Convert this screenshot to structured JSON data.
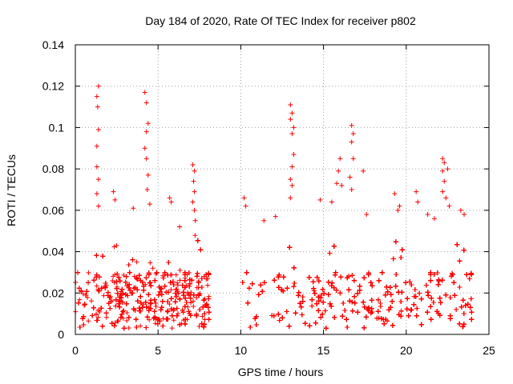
{
  "chart_data": {
    "type": "scatter",
    "title": "Day 184 of 2020, Rate Of TEC Index for receiver p802",
    "xlabel": "GPS time / hours",
    "ylabel": "ROTI / TECUs",
    "xlim": [
      0,
      25
    ],
    "ylim": [
      0,
      0.14
    ],
    "x_ticks": [
      0,
      5,
      10,
      15,
      20,
      25
    ],
    "x_tick_labels": [
      "0",
      "5",
      "10",
      "15",
      "20",
      "25"
    ],
    "y_ticks": [
      0,
      0.02,
      0.04,
      0.06,
      0.08,
      0.1,
      0.12,
      0.14
    ],
    "y_tick_labels": [
      "0",
      "0.02",
      "0.04",
      "0.06",
      "0.08",
      "0.1",
      "0.12",
      "0.14"
    ],
    "grid": true,
    "marker": "plus",
    "series": [
      {
        "name": "ROTI",
        "color": "#ff0000",
        "coverage_hours": [
          [
            0,
            8.1
          ],
          [
            10.1,
            24.0
          ]
        ],
        "baseline_range": [
          0.003,
          0.03
        ],
        "peaks": [
          {
            "x": 1.4,
            "y": 0.12
          },
          {
            "x": 1.3,
            "y": 0.115
          },
          {
            "x": 1.35,
            "y": 0.11
          },
          {
            "x": 1.4,
            "y": 0.099
          },
          {
            "x": 1.3,
            "y": 0.091
          },
          {
            "x": 1.3,
            "y": 0.081
          },
          {
            "x": 1.4,
            "y": 0.075
          },
          {
            "x": 1.3,
            "y": 0.068
          },
          {
            "x": 1.4,
            "y": 0.062
          },
          {
            "x": 2.3,
            "y": 0.069
          },
          {
            "x": 2.4,
            "y": 0.065
          },
          {
            "x": 3.5,
            "y": 0.061
          },
          {
            "x": 4.2,
            "y": 0.117
          },
          {
            "x": 4.3,
            "y": 0.112
          },
          {
            "x": 4.4,
            "y": 0.102
          },
          {
            "x": 4.3,
            "y": 0.098
          },
          {
            "x": 4.2,
            "y": 0.09
          },
          {
            "x": 4.3,
            "y": 0.085
          },
          {
            "x": 4.4,
            "y": 0.077
          },
          {
            "x": 4.35,
            "y": 0.07
          },
          {
            "x": 4.5,
            "y": 0.063
          },
          {
            "x": 5.7,
            "y": 0.066
          },
          {
            "x": 5.8,
            "y": 0.064
          },
          {
            "x": 6.3,
            "y": 0.052
          },
          {
            "x": 7.1,
            "y": 0.082
          },
          {
            "x": 7.2,
            "y": 0.079
          },
          {
            "x": 7.15,
            "y": 0.074
          },
          {
            "x": 7.2,
            "y": 0.069
          },
          {
            "x": 7.1,
            "y": 0.064
          },
          {
            "x": 7.2,
            "y": 0.06
          },
          {
            "x": 7.25,
            "y": 0.055
          },
          {
            "x": 10.2,
            "y": 0.066
          },
          {
            "x": 10.3,
            "y": 0.062
          },
          {
            "x": 11.4,
            "y": 0.055
          },
          {
            "x": 12.1,
            "y": 0.057
          },
          {
            "x": 13.0,
            "y": 0.111
          },
          {
            "x": 13.1,
            "y": 0.107
          },
          {
            "x": 13.0,
            "y": 0.104
          },
          {
            "x": 13.2,
            "y": 0.1
          },
          {
            "x": 13.1,
            "y": 0.097
          },
          {
            "x": 13.2,
            "y": 0.087
          },
          {
            "x": 13.1,
            "y": 0.081
          },
          {
            "x": 13.0,
            "y": 0.075
          },
          {
            "x": 13.1,
            "y": 0.072
          },
          {
            "x": 13.0,
            "y": 0.066
          },
          {
            "x": 14.8,
            "y": 0.065
          },
          {
            "x": 15.5,
            "y": 0.064
          },
          {
            "x": 15.8,
            "y": 0.073
          },
          {
            "x": 16.0,
            "y": 0.085
          },
          {
            "x": 15.9,
            "y": 0.079
          },
          {
            "x": 16.1,
            "y": 0.072
          },
          {
            "x": 16.7,
            "y": 0.101
          },
          {
            "x": 16.8,
            "y": 0.097
          },
          {
            "x": 16.7,
            "y": 0.093
          },
          {
            "x": 16.8,
            "y": 0.085
          },
          {
            "x": 16.6,
            "y": 0.076
          },
          {
            "x": 16.7,
            "y": 0.07
          },
          {
            "x": 17.4,
            "y": 0.079
          },
          {
            "x": 17.6,
            "y": 0.058
          },
          {
            "x": 19.3,
            "y": 0.068
          },
          {
            "x": 19.6,
            "y": 0.062
          },
          {
            "x": 19.5,
            "y": 0.06
          },
          {
            "x": 20.6,
            "y": 0.069
          },
          {
            "x": 20.7,
            "y": 0.064
          },
          {
            "x": 21.3,
            "y": 0.058
          },
          {
            "x": 21.7,
            "y": 0.056
          },
          {
            "x": 22.2,
            "y": 0.085
          },
          {
            "x": 22.3,
            "y": 0.083
          },
          {
            "x": 22.2,
            "y": 0.079
          },
          {
            "x": 22.3,
            "y": 0.074
          },
          {
            "x": 22.2,
            "y": 0.069
          },
          {
            "x": 22.4,
            "y": 0.066
          },
          {
            "x": 22.5,
            "y": 0.08
          },
          {
            "x": 22.6,
            "y": 0.062
          },
          {
            "x": 23.3,
            "y": 0.06
          },
          {
            "x": 23.5,
            "y": 0.058
          }
        ]
      }
    ]
  }
}
